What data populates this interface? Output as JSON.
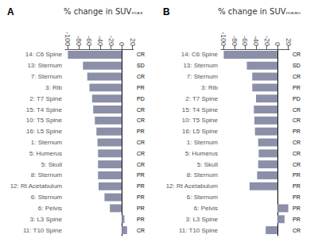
{
  "chart_data": [
    {
      "type": "bar",
      "orientation": "horizontal",
      "title": "% change in SUVₘₐₓ",
      "panel_label": "A",
      "categories": [
        "14: C6 Spine",
        "13: Sternum",
        "7: Sternum",
        "3: Rib",
        "2: T7 Spine",
        "15: T4 Spine",
        "10: T5 Spine",
        "16: L5 Spine",
        "1: Sternum",
        "5: Humerus",
        "5: Skull",
        "8: Sternum",
        "12: Rt Acetabulum",
        "6: Sternum",
        "6: Pelvis",
        "3: L3 Spine",
        "11: T10 Spine"
      ],
      "values": [
        -100,
        -72,
        -64,
        -60,
        -55,
        -53,
        -50,
        -47,
        -45,
        -44,
        -44,
        -44,
        -43,
        -32,
        -22,
        5,
        10
      ],
      "annotations": [
        "CR",
        "SD",
        "CR",
        "PR",
        "PD",
        "CR",
        "CR",
        "PR",
        "CR",
        "CR",
        "CR",
        "PR",
        "PR",
        "PR",
        "PR",
        "PR",
        "CR"
      ],
      "color": "#8c8fa8",
      "xlim": [
        -105,
        22
      ],
      "xticks": [
        -100,
        -80,
        -60,
        -40,
        -20,
        0,
        20
      ],
      "grid": false
    },
    {
      "type": "bar",
      "orientation": "horizontal",
      "title": "% change in SUVₘₑₐₙ",
      "panel_label": "B",
      "categories": [
        "14: C6 Spine",
        "13: Sternum",
        "7: Sternum",
        "3: Rib",
        "2: T7 Spine",
        "15: T4 Spine",
        "10: T5 Spine",
        "16: L5 Spine",
        "1: Sternum",
        "5: Humerus",
        "5: Skull",
        "8: Sternum",
        "12: Rt Acetabulum",
        "6: Sternum",
        "6: Pelvis",
        "3: L3 Spine",
        "11: T10 Spine"
      ],
      "values": [
        -100,
        -57,
        -47,
        -47,
        -40,
        -44,
        -43,
        -42,
        -36,
        -35,
        -36,
        -38,
        -52,
        0,
        20,
        13,
        -22
      ],
      "annotations": [
        "CR",
        "SD",
        "CR",
        "PR",
        "PD",
        "CR",
        "CR",
        "PR",
        "CR",
        "CR",
        "CR",
        "PR",
        "PR",
        "PR",
        "PR",
        "PR",
        "CR"
      ],
      "color": "#8c8fa8",
      "xlim": [
        -105,
        22
      ],
      "xticks": [
        -100,
        -80,
        -60,
        -40,
        -20,
        0,
        20
      ],
      "grid": false
    }
  ]
}
